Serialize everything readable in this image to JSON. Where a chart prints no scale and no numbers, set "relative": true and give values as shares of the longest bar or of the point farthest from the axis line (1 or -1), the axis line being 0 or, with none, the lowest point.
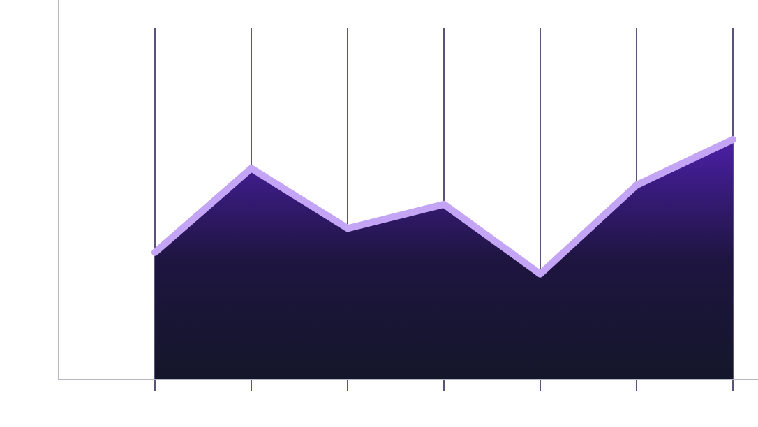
{
  "chart_data": {
    "type": "area",
    "relative": true,
    "categories": [
      null,
      null,
      null,
      null,
      null,
      null,
      null,
      null
    ],
    "series": [
      {
        "color": "#c4a5f5",
        "values": [
          null,
          0.53,
          0.88,
          0.63,
          0.73,
          0.44,
          0.81,
          1
        ]
      }
    ],
    "grid": "x"
  }
}
